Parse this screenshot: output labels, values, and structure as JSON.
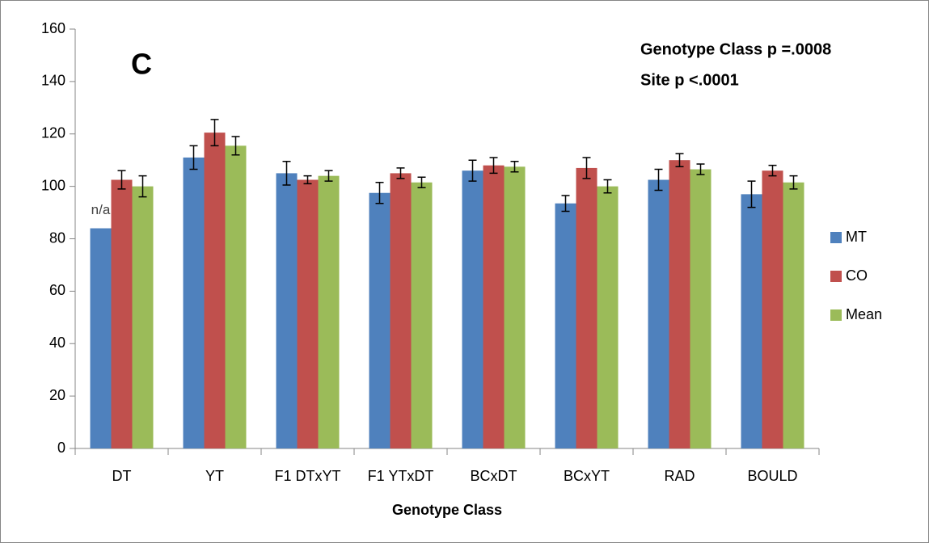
{
  "chart_data": {
    "type": "bar",
    "title": "C",
    "annotations": [
      "Genotype Class  p =.0008",
      "Site p <.0001",
      "n/a"
    ],
    "x_label": "Genotype Class",
    "categories": [
      "DT",
      "YT",
      "F1 DTxYT",
      "F1 YTxDT",
      "BCxDT",
      "BCxYT",
      "RAD",
      "BOULD"
    ],
    "series": [
      {
        "name": "MT",
        "color": "#4f81bd",
        "values": [
          84,
          111,
          105,
          97.5,
          106,
          93.5,
          102.5,
          97
        ],
        "errors": [
          null,
          4.5,
          4.5,
          4,
          4,
          3,
          4,
          5
        ]
      },
      {
        "name": "CO",
        "color": "#c0504d",
        "values": [
          102.5,
          120.5,
          102.5,
          105,
          108,
          107,
          110,
          106
        ],
        "errors": [
          3.5,
          5,
          1.5,
          2,
          3,
          4,
          2.5,
          2
        ]
      },
      {
        "name": "Mean",
        "color": "#9bbb59",
        "values": [
          100,
          115.5,
          104,
          101.5,
          107.5,
          100,
          106.5,
          101.5
        ],
        "errors": [
          4,
          3.5,
          2,
          2,
          2,
          2.5,
          2,
          2.5
        ]
      }
    ],
    "ylim": [
      0,
      160
    ],
    "yticks": [
      0,
      20,
      40,
      60,
      80,
      100,
      120,
      140,
      160
    ],
    "legend": "right"
  }
}
